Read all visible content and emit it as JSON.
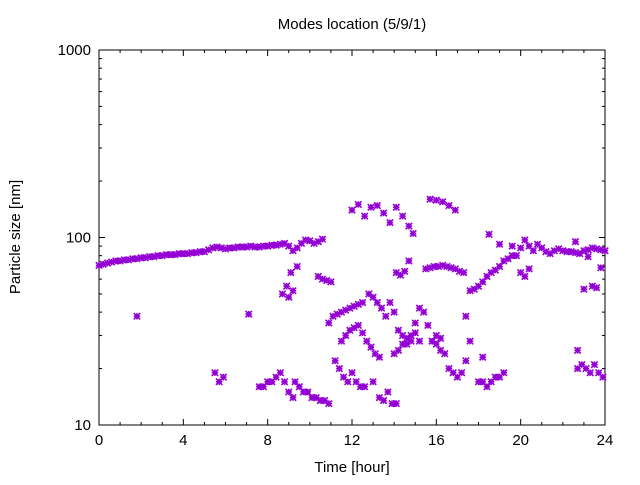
{
  "chart_data": {
    "type": "scatter",
    "title": "Modes location (5/9/1)",
    "xlabel": "Time [hour]",
    "ylabel": "Particle size [nm]",
    "xlim": [
      0,
      24
    ],
    "ylim": [
      10,
      1000
    ],
    "yscale": "log",
    "x_ticks": [
      0,
      4,
      8,
      12,
      16,
      20,
      24
    ],
    "x_tick_labels": [
      "0",
      "4",
      "8",
      "12",
      "16",
      "20",
      "24"
    ],
    "y_ticks": [
      10,
      100,
      1000
    ],
    "y_tick_labels": [
      "10",
      "100",
      "1000"
    ],
    "grid": false,
    "legend": "none",
    "marker_color": "#9400d3",
    "series": [
      {
        "values": [
          [
            0.0,
            71
          ],
          [
            0.2,
            72
          ],
          [
            0.4,
            73
          ],
          [
            0.6,
            74
          ],
          [
            0.8,
            75
          ],
          [
            1.0,
            75
          ],
          [
            1.2,
            76
          ],
          [
            1.4,
            76
          ],
          [
            1.6,
            77
          ],
          [
            1.8,
            77
          ],
          [
            2.0,
            78
          ],
          [
            2.2,
            78
          ],
          [
            2.4,
            79
          ],
          [
            2.6,
            79
          ],
          [
            2.8,
            80
          ],
          [
            3.0,
            80
          ],
          [
            3.2,
            81
          ],
          [
            3.4,
            81
          ],
          [
            3.6,
            81
          ],
          [
            3.8,
            82
          ],
          [
            4.0,
            82
          ],
          [
            4.2,
            82
          ],
          [
            4.4,
            83
          ],
          [
            4.6,
            83
          ],
          [
            4.8,
            84
          ],
          [
            5.0,
            84
          ],
          [
            5.2,
            86
          ],
          [
            5.4,
            88
          ],
          [
            5.6,
            89
          ],
          [
            5.8,
            88
          ],
          [
            6.0,
            87
          ],
          [
            6.2,
            88
          ],
          [
            6.4,
            88
          ],
          [
            6.6,
            89
          ],
          [
            6.8,
            89
          ],
          [
            7.0,
            89
          ],
          [
            7.2,
            90
          ],
          [
            7.4,
            89
          ],
          [
            7.6,
            89
          ],
          [
            7.8,
            90
          ],
          [
            8.0,
            90
          ],
          [
            8.2,
            91
          ],
          [
            8.4,
            91
          ],
          [
            8.6,
            92
          ],
          [
            8.8,
            93
          ],
          [
            9.0,
            90
          ],
          [
            9.2,
            85
          ],
          [
            9.4,
            88
          ],
          [
            9.6,
            93
          ],
          [
            9.8,
            97
          ],
          [
            10.0,
            96
          ],
          [
            10.2,
            93
          ],
          [
            10.4,
            95
          ],
          [
            10.6,
            98
          ],
          [
            12.0,
            140
          ],
          [
            12.3,
            150
          ],
          [
            12.6,
            130
          ],
          [
            12.9,
            145
          ],
          [
            13.2,
            148
          ],
          [
            13.5,
            135
          ],
          [
            13.8,
            120
          ],
          [
            14.1,
            145
          ],
          [
            14.4,
            130
          ],
          [
            14.7,
            115
          ],
          [
            14.9,
            105
          ],
          [
            15.7,
            160
          ],
          [
            16.0,
            158
          ],
          [
            16.3,
            155
          ],
          [
            16.6,
            148
          ],
          [
            16.9,
            140
          ],
          [
            18.5,
            104
          ],
          [
            19.0,
            92
          ],
          [
            19.6,
            90
          ],
          [
            19.8,
            80
          ],
          [
            20.0,
            88
          ],
          [
            20.2,
            97
          ],
          [
            20.4,
            90
          ],
          [
            20.6,
            85
          ],
          [
            20.8,
            92
          ],
          [
            21.0,
            88
          ],
          [
            21.2,
            84
          ],
          [
            21.4,
            82
          ],
          [
            21.6,
            85
          ],
          [
            21.8,
            87
          ],
          [
            22.0,
            85
          ],
          [
            22.2,
            84
          ],
          [
            22.4,
            84
          ],
          [
            22.6,
            83
          ],
          [
            22.8,
            82
          ],
          [
            23.0,
            85
          ],
          [
            23.2,
            86
          ],
          [
            23.4,
            88
          ],
          [
            23.6,
            87
          ],
          [
            23.8,
            86
          ],
          [
            24.0,
            85
          ],
          [
            22.6,
            95
          ],
          [
            23.2,
            79
          ],
          [
            23.8,
            69
          ],
          [
            1.8,
            38
          ],
          [
            5.5,
            19
          ],
          [
            5.7,
            17
          ],
          [
            5.9,
            18
          ],
          [
            7.1,
            39
          ],
          [
            7.6,
            16
          ],
          [
            7.8,
            16
          ],
          [
            8.0,
            17
          ],
          [
            8.2,
            17
          ],
          [
            8.4,
            18
          ],
          [
            8.6,
            19
          ],
          [
            8.8,
            17
          ],
          [
            9.0,
            15
          ],
          [
            9.2,
            14
          ],
          [
            9.3,
            17
          ],
          [
            9.5,
            16
          ],
          [
            9.7,
            15
          ],
          [
            9.9,
            15
          ],
          [
            10.1,
            14
          ],
          [
            10.3,
            14
          ],
          [
            10.5,
            13.5
          ],
          [
            10.7,
            13.5
          ],
          [
            10.9,
            13
          ],
          [
            8.9,
            55
          ],
          [
            9.0,
            48
          ],
          [
            9.1,
            65
          ],
          [
            9.2,
            52
          ],
          [
            9.4,
            70
          ],
          [
            8.7,
            50
          ],
          [
            10.4,
            62
          ],
          [
            10.6,
            60
          ],
          [
            10.8,
            59
          ],
          [
            11.0,
            58
          ],
          [
            10.9,
            35
          ],
          [
            11.1,
            38
          ],
          [
            11.3,
            39
          ],
          [
            11.5,
            40
          ],
          [
            11.7,
            41
          ],
          [
            11.9,
            42
          ],
          [
            12.1,
            43
          ],
          [
            12.3,
            44
          ],
          [
            12.5,
            45
          ],
          [
            11.2,
            22
          ],
          [
            11.4,
            20
          ],
          [
            11.6,
            18
          ],
          [
            11.8,
            17
          ],
          [
            12.0,
            19
          ],
          [
            12.2,
            17
          ],
          [
            12.4,
            16
          ],
          [
            12.6,
            16
          ],
          [
            11.5,
            28
          ],
          [
            11.7,
            30
          ],
          [
            11.9,
            32
          ],
          [
            12.1,
            33
          ],
          [
            12.3,
            34
          ],
          [
            12.5,
            31
          ],
          [
            12.7,
            28
          ],
          [
            12.9,
            26
          ],
          [
            13.1,
            24
          ],
          [
            13.3,
            23
          ],
          [
            12.8,
            50
          ],
          [
            13.0,
            48
          ],
          [
            13.2,
            45
          ],
          [
            13.4,
            42
          ],
          [
            13.6,
            38
          ],
          [
            13.0,
            17
          ],
          [
            13.3,
            14
          ],
          [
            13.5,
            13.5
          ],
          [
            13.7,
            15
          ],
          [
            13.9,
            13
          ],
          [
            14.1,
            13
          ],
          [
            13.8,
            45
          ],
          [
            14.0,
            40
          ],
          [
            14.2,
            32
          ],
          [
            14.4,
            30
          ],
          [
            14.6,
            27
          ],
          [
            14.8,
            28
          ],
          [
            15.0,
            35
          ],
          [
            14.0,
            24
          ],
          [
            14.2,
            25
          ],
          [
            14.4,
            27
          ],
          [
            14.6,
            29
          ],
          [
            14.8,
            30
          ],
          [
            15.0,
            31
          ],
          [
            15.2,
            28
          ],
          [
            14.1,
            65
          ],
          [
            14.3,
            63
          ],
          [
            14.5,
            66
          ],
          [
            14.7,
            75
          ],
          [
            15.2,
            42
          ],
          [
            15.4,
            40
          ],
          [
            15.6,
            34
          ],
          [
            15.8,
            28
          ],
          [
            16.0,
            27
          ],
          [
            16.2,
            25
          ],
          [
            16.4,
            24
          ],
          [
            15.8,
            28
          ],
          [
            16.0,
            30
          ],
          [
            16.2,
            29
          ],
          [
            15.5,
            68
          ],
          [
            15.7,
            69
          ],
          [
            15.9,
            70
          ],
          [
            16.1,
            70
          ],
          [
            16.3,
            71
          ],
          [
            16.5,
            70
          ],
          [
            16.7,
            69
          ],
          [
            16.9,
            68
          ],
          [
            17.1,
            66
          ],
          [
            17.3,
            65
          ],
          [
            16.6,
            20
          ],
          [
            16.8,
            19
          ],
          [
            17.0,
            18
          ],
          [
            17.2,
            19
          ],
          [
            17.4,
            22
          ],
          [
            17.4,
            38
          ],
          [
            17.6,
            52
          ],
          [
            17.8,
            53
          ],
          [
            18.0,
            55
          ],
          [
            18.2,
            58
          ],
          [
            18.4,
            62
          ],
          [
            18.6,
            65
          ],
          [
            18.8,
            67
          ],
          [
            17.6,
            28
          ],
          [
            18.0,
            17
          ],
          [
            18.2,
            17
          ],
          [
            18.4,
            16
          ],
          [
            18.6,
            17
          ],
          [
            18.8,
            18
          ],
          [
            19.0,
            18
          ],
          [
            19.2,
            19
          ],
          [
            18.2,
            23
          ],
          [
            19.0,
            70
          ],
          [
            19.2,
            75
          ],
          [
            19.4,
            77
          ],
          [
            19.6,
            80
          ],
          [
            20.0,
            65
          ],
          [
            20.2,
            62
          ],
          [
            20.4,
            68
          ],
          [
            22.7,
            25
          ],
          [
            22.9,
            21
          ],
          [
            23.1,
            20
          ],
          [
            23.3,
            19
          ],
          [
            23.5,
            21
          ],
          [
            23.7,
            19
          ],
          [
            23.9,
            18
          ],
          [
            22.7,
            20
          ],
          [
            23.0,
            53
          ],
          [
            23.4,
            55
          ],
          [
            23.6,
            54
          ]
        ]
      }
    ]
  }
}
